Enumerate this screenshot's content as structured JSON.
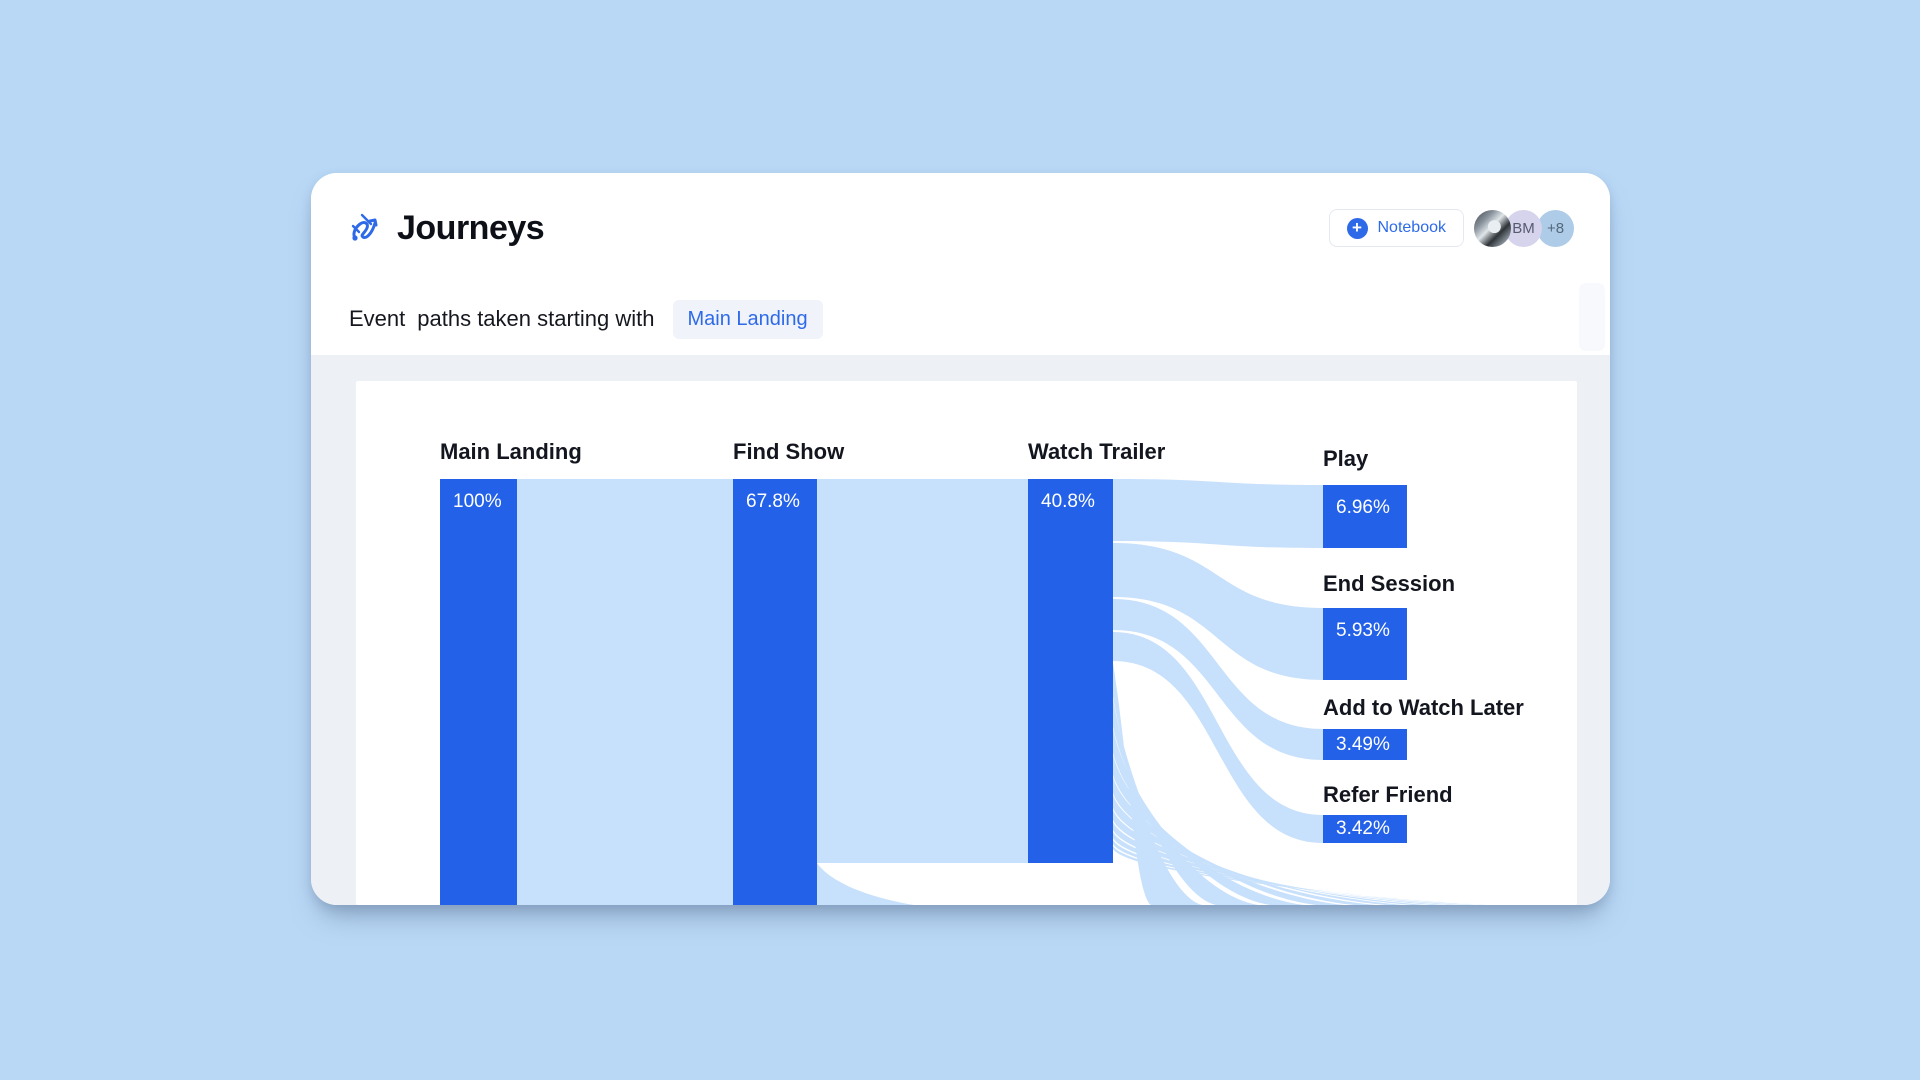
{
  "app": {
    "title": "Journeys",
    "logo_icon": "journey-path-icon"
  },
  "header": {
    "notebook_button": {
      "label": "Notebook",
      "icon": "plus-circle-icon"
    },
    "avatars": [
      {
        "type": "photo",
        "label": ""
      },
      {
        "type": "initials",
        "label": "BM"
      },
      {
        "type": "overflow-count",
        "label": "+8"
      }
    ]
  },
  "subheader": {
    "prefix": "Event",
    "text": "paths taken starting with",
    "event_chip": "Main Landing"
  },
  "chart_data": {
    "type": "sankey",
    "title": "Event paths taken starting with Main Landing",
    "columns": [
      {
        "nodes": [
          {
            "label": "Main Landing",
            "value_pct": 100,
            "value_label": "100%"
          }
        ]
      },
      {
        "nodes": [
          {
            "label": "Find Show",
            "value_pct": 67.8,
            "value_label": "67.8%"
          }
        ]
      },
      {
        "nodes": [
          {
            "label": "Watch Trailer",
            "value_pct": 40.8,
            "value_label": "40.8%"
          }
        ]
      },
      {
        "nodes": [
          {
            "label": "Play",
            "value_pct": 6.96,
            "value_label": "6.96%"
          },
          {
            "label": "End Session",
            "value_pct": 5.93,
            "value_label": "5.93%"
          },
          {
            "label": "Add to Watch Later",
            "value_pct": 3.49,
            "value_label": "3.49%"
          },
          {
            "label": "Refer Friend",
            "value_pct": 3.42,
            "value_label": "3.42%"
          }
        ]
      }
    ],
    "links": [
      {
        "source": "Main Landing",
        "target": "Find Show",
        "value_pct": 67.8
      },
      {
        "source": "Find Show",
        "target": "Watch Trailer",
        "value_pct": 40.8
      },
      {
        "source": "Watch Trailer",
        "target": "Play",
        "value_pct": 6.96
      },
      {
        "source": "Watch Trailer",
        "target": "End Session",
        "value_pct": 5.93
      },
      {
        "source": "Watch Trailer",
        "target": "Add to Watch Later",
        "value_pct": 3.49
      },
      {
        "source": "Watch Trailer",
        "target": "Refer Friend",
        "value_pct": 3.42
      }
    ],
    "offscreen_stream_count": 11,
    "layout_hints": {
      "bars_top_aligned": true,
      "lower_paths_cut_by_viewport": true
    },
    "colors": {
      "node": "#2361e9",
      "flow": "#c7e0fb",
      "accent": "#2e6ae8"
    }
  }
}
